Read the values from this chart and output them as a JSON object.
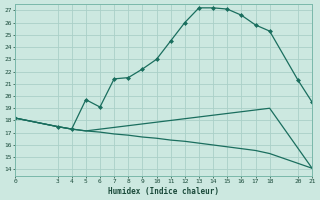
{
  "xlabel": "Humidex (Indice chaleur)",
  "bg_color": "#cce8e0",
  "line_color": "#1a6e5e",
  "grid_color": "#aad0c8",
  "xlim": [
    0,
    21
  ],
  "ylim": [
    13.5,
    27.5
  ],
  "xticks": [
    0,
    3,
    4,
    5,
    6,
    7,
    8,
    9,
    10,
    11,
    12,
    13,
    14,
    15,
    16,
    17,
    18,
    20,
    21
  ],
  "yticks": [
    14,
    15,
    16,
    17,
    18,
    19,
    20,
    21,
    22,
    23,
    24,
    25,
    26,
    27
  ],
  "line1_x": [
    0,
    3,
    4,
    5,
    6,
    7,
    8,
    9,
    10,
    11,
    12,
    13,
    14,
    15,
    16,
    17,
    18,
    20,
    21
  ],
  "line1_y": [
    18.2,
    17.5,
    17.3,
    19.7,
    19.1,
    21.4,
    21.5,
    22.2,
    23.0,
    24.5,
    26.0,
    27.2,
    27.2,
    27.1,
    26.6,
    25.8,
    25.3,
    21.3,
    19.5
  ],
  "line2_x": [
    0,
    3,
    4,
    5,
    6,
    7,
    8,
    9,
    10,
    11,
    12,
    13,
    14,
    15,
    16,
    17,
    18,
    20,
    21
  ],
  "line2_y": [
    18.2,
    17.5,
    17.3,
    17.15,
    17.05,
    16.9,
    16.8,
    16.65,
    16.55,
    16.4,
    16.3,
    16.15,
    16.0,
    15.85,
    15.7,
    15.55,
    15.3,
    14.5,
    14.1
  ],
  "line3_x": [
    0,
    3,
    4,
    5,
    18,
    21
  ],
  "line3_y": [
    18.2,
    17.5,
    17.3,
    17.15,
    19.0,
    14.1
  ]
}
